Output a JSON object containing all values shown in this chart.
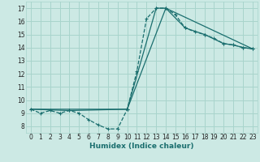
{
  "xlabel": "Humidex (Indice chaleur)",
  "xlim": [
    -0.5,
    23.5
  ],
  "ylim": [
    7.5,
    17.5
  ],
  "xticks": [
    0,
    1,
    2,
    3,
    4,
    5,
    6,
    7,
    8,
    9,
    10,
    11,
    12,
    13,
    14,
    15,
    16,
    17,
    18,
    19,
    20,
    21,
    22,
    23
  ],
  "yticks": [
    8,
    9,
    10,
    11,
    12,
    13,
    14,
    15,
    16,
    17
  ],
  "bg_color": "#cce9e4",
  "grid_color": "#a8d4cc",
  "line_color": "#1a6e6e",
  "line1_x": [
    0,
    1,
    2,
    3,
    4,
    5,
    6,
    7,
    8,
    9,
    10,
    11,
    12,
    13,
    14,
    15,
    16,
    17,
    18,
    19,
    20,
    21,
    22,
    23
  ],
  "line1_y": [
    9.3,
    9.0,
    9.2,
    9.0,
    9.2,
    9.0,
    8.5,
    8.1,
    7.8,
    7.8,
    9.3,
    12.2,
    16.2,
    17.0,
    17.0,
    16.5,
    15.5,
    15.2,
    15.0,
    14.7,
    14.3,
    14.2,
    14.0,
    13.9
  ],
  "line2_x": [
    0,
    4,
    10,
    13,
    14,
    16,
    18,
    20,
    21,
    22,
    23
  ],
  "line2_y": [
    9.3,
    9.2,
    9.3,
    17.0,
    17.0,
    15.5,
    15.0,
    14.3,
    14.2,
    14.0,
    13.9
  ],
  "line3_x": [
    0,
    10,
    14,
    23
  ],
  "line3_y": [
    9.3,
    9.3,
    17.0,
    13.9
  ]
}
